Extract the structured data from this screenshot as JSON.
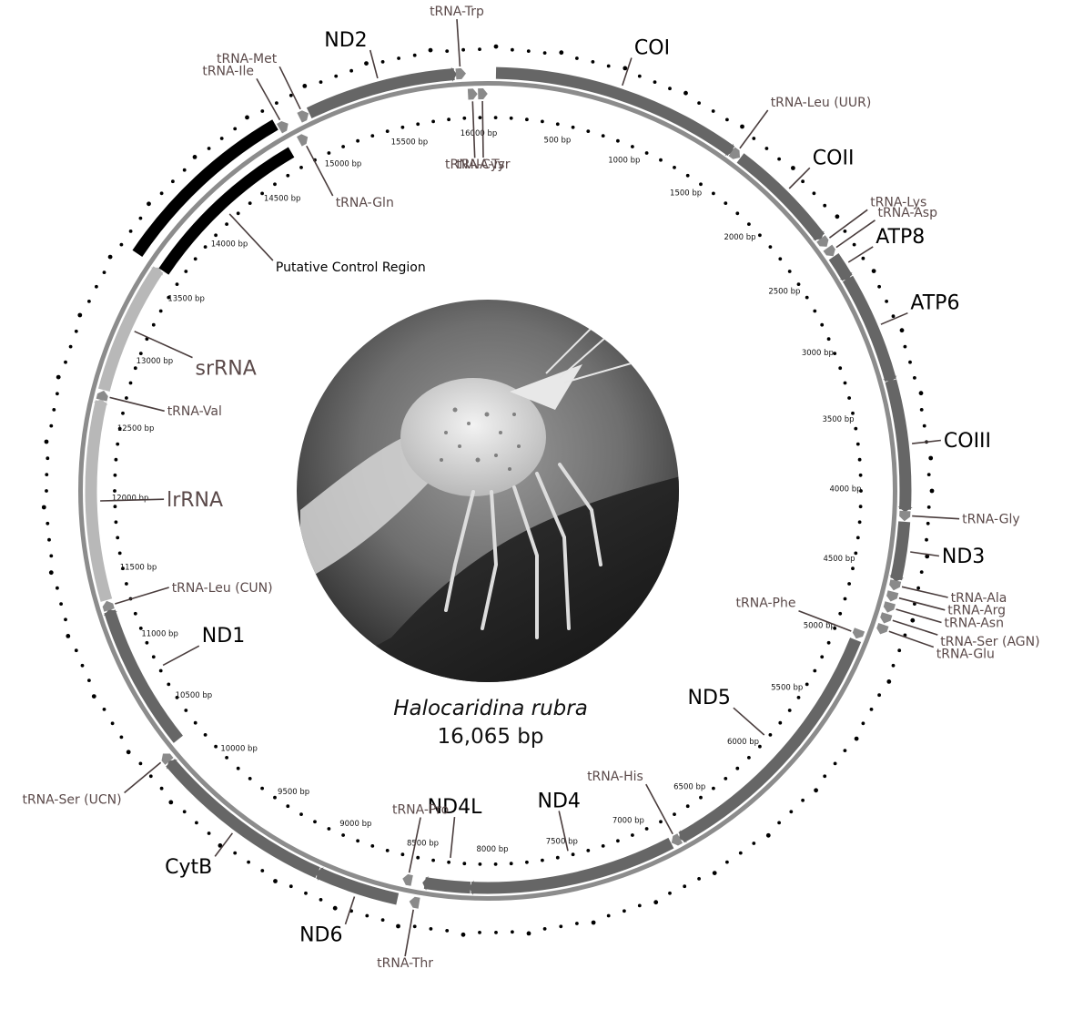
{
  "genome": {
    "species": "Halocaridina rubra",
    "size_label": "16,065 bp",
    "length_bp": 16065,
    "photo": "shrimp-photo"
  },
  "colors": {
    "gene_dark": "#666666",
    "backbone": "#8c8c8c",
    "rrna": "#b8b8b8",
    "control": "#000000",
    "trna": "#8a8a8a",
    "label_black": "#000000",
    "label_brown": "#5b4a4a",
    "leader": "#4a3d3d"
  },
  "features": [
    {
      "name": "COI",
      "kind": "gene",
      "strand": "outer",
      "start": 50,
      "end": 1590,
      "label_style": "large"
    },
    {
      "name": "tRNA-Leu (UUR)",
      "kind": "trna",
      "strand": "outer",
      "start": 1590,
      "end": 1655,
      "label_style": "small"
    },
    {
      "name": "COII",
      "kind": "gene",
      "strand": "outer",
      "start": 1660,
      "end": 2350,
      "label_style": "large"
    },
    {
      "name": "tRNA-Lys",
      "kind": "trna",
      "strand": "outer",
      "start": 2355,
      "end": 2420,
      "label_style": "small"
    },
    {
      "name": "tRNA-Asp",
      "kind": "trna",
      "strand": "outer",
      "start": 2425,
      "end": 2490,
      "label_style": "small"
    },
    {
      "name": "ATP8",
      "kind": "gene",
      "strand": "outer",
      "start": 2495,
      "end": 2650,
      "label_style": "large"
    },
    {
      "name": "ATP6",
      "kind": "gene",
      "strand": "outer",
      "start": 2655,
      "end": 3330,
      "label_style": "large"
    },
    {
      "name": "COIII",
      "kind": "gene",
      "strand": "outer",
      "start": 3335,
      "end": 4130,
      "label_style": "large"
    },
    {
      "name": "tRNA-Gly",
      "kind": "trna",
      "strand": "outer",
      "start": 4135,
      "end": 4200,
      "label_style": "small"
    },
    {
      "name": "ND3",
      "kind": "gene",
      "strand": "outer",
      "start": 4205,
      "end": 4560,
      "label_style": "large"
    },
    {
      "name": "tRNA-Ala",
      "kind": "trna",
      "strand": "outer",
      "start": 4565,
      "end": 4630,
      "label_style": "small"
    },
    {
      "name": "tRNA-Arg",
      "kind": "trna",
      "strand": "outer",
      "start": 4635,
      "end": 4700,
      "label_style": "small"
    },
    {
      "name": "tRNA-Asn",
      "kind": "trna",
      "strand": "outer",
      "start": 4705,
      "end": 4770,
      "label_style": "small"
    },
    {
      "name": "tRNA-Ser (AGN)",
      "kind": "trna",
      "strand": "outer",
      "start": 4775,
      "end": 4840,
      "label_style": "small"
    },
    {
      "name": "tRNA-Glu",
      "kind": "trna",
      "strand": "outer",
      "start": 4845,
      "end": 4910,
      "label_style": "small"
    },
    {
      "name": "tRNA-Phe",
      "kind": "trna",
      "strand": "inner",
      "start": 4925,
      "end": 4990,
      "label_style": "small"
    },
    {
      "name": "ND5",
      "kind": "gene",
      "strand": "inner",
      "start": 5000,
      "end": 6730,
      "label_style": "large"
    },
    {
      "name": "tRNA-His",
      "kind": "trna",
      "strand": "inner",
      "start": 6735,
      "end": 6800,
      "label_style": "small"
    },
    {
      "name": "ND4",
      "kind": "gene",
      "strand": "inner",
      "start": 6805,
      "end": 8140,
      "label_style": "large"
    },
    {
      "name": "ND4L",
      "kind": "gene",
      "strand": "inner",
      "start": 8145,
      "end": 8440,
      "label_style": "large"
    },
    {
      "name": "tRNA-Thr",
      "kind": "trna",
      "strand": "outer",
      "start": 8450,
      "end": 8515,
      "label_style": "small"
    },
    {
      "name": "tRNA-Pro",
      "kind": "trna",
      "strand": "inner",
      "start": 8520,
      "end": 8585,
      "label_style": "small"
    },
    {
      "name": "ND6",
      "kind": "gene",
      "strand": "outer",
      "start": 8590,
      "end": 9100,
      "label_style": "large"
    },
    {
      "name": "CytB",
      "kind": "gene",
      "strand": "outer",
      "start": 9105,
      "end": 10240,
      "label_style": "large"
    },
    {
      "name": "tRNA-Ser (UCN)",
      "kind": "trna",
      "strand": "outer",
      "start": 10245,
      "end": 10310,
      "label_style": "small"
    },
    {
      "name": "ND1",
      "kind": "gene",
      "strand": "inner",
      "start": 10320,
      "end": 11260,
      "label_style": "large"
    },
    {
      "name": "tRNA-Leu (CUN)",
      "kind": "trna",
      "strand": "inner",
      "start": 11265,
      "end": 11330,
      "label_style": "small"
    },
    {
      "name": "lrRNA",
      "kind": "rrna",
      "strand": "inner",
      "start": 11335,
      "end": 12630,
      "label_style": "rrna"
    },
    {
      "name": "tRNA-Val",
      "kind": "trna",
      "strand": "inner",
      "start": 12635,
      "end": 12700,
      "label_style": "small"
    },
    {
      "name": "srRNA",
      "kind": "rrna",
      "strand": "inner",
      "start": 12705,
      "end": 13560,
      "label_style": "rrna"
    },
    {
      "name": "Putative Control Region",
      "kind": "control",
      "strand": "both",
      "start": 13570,
      "end": 14720,
      "label_style": "control"
    },
    {
      "name": "tRNA-Ile",
      "kind": "trna",
      "strand": "outer",
      "start": 14725,
      "end": 14790,
      "label_style": "small"
    },
    {
      "name": "tRNA-Gln",
      "kind": "trna",
      "strand": "inner",
      "start": 14795,
      "end": 14860,
      "label_style": "small"
    },
    {
      "name": "tRNA-Met",
      "kind": "trna",
      "strand": "outer",
      "start": 14865,
      "end": 14930,
      "label_style": "small"
    },
    {
      "name": "ND2",
      "kind": "gene",
      "strand": "outer",
      "start": 14935,
      "end": 15860,
      "label_style": "large"
    },
    {
      "name": "tRNA-Trp",
      "kind": "trna",
      "strand": "outer",
      "start": 15865,
      "end": 15930,
      "label_style": "small"
    },
    {
      "name": "tRNA-Cys",
      "kind": "trna",
      "strand": "inner",
      "start": 15935,
      "end": 15995,
      "label_style": "small"
    },
    {
      "name": "tRNA-Tyr",
      "kind": "trna",
      "strand": "inner",
      "start": 16000,
      "end": 16060,
      "label_style": "small"
    }
  ],
  "ticks": [
    "500 bp",
    "1000 bp",
    "1500 bp",
    "2000 bp",
    "2500 bp",
    "3000 bp",
    "3500 bp",
    "4000 bp",
    "4500 bp",
    "5000 bp",
    "5500 bp",
    "6000 bp",
    "6500 bp",
    "7000 bp",
    "7500 bp",
    "8000 bp",
    "8500 bp",
    "9000 bp",
    "9500 bp",
    "10000 bp",
    "10500 bp",
    "11000 bp",
    "11500 bp",
    "12000 bp",
    "12500 bp",
    "13000 bp",
    "13500 bp",
    "14000 bp",
    "14500 bp",
    "15000 bp",
    "15500 bp",
    "16000 bp"
  ]
}
